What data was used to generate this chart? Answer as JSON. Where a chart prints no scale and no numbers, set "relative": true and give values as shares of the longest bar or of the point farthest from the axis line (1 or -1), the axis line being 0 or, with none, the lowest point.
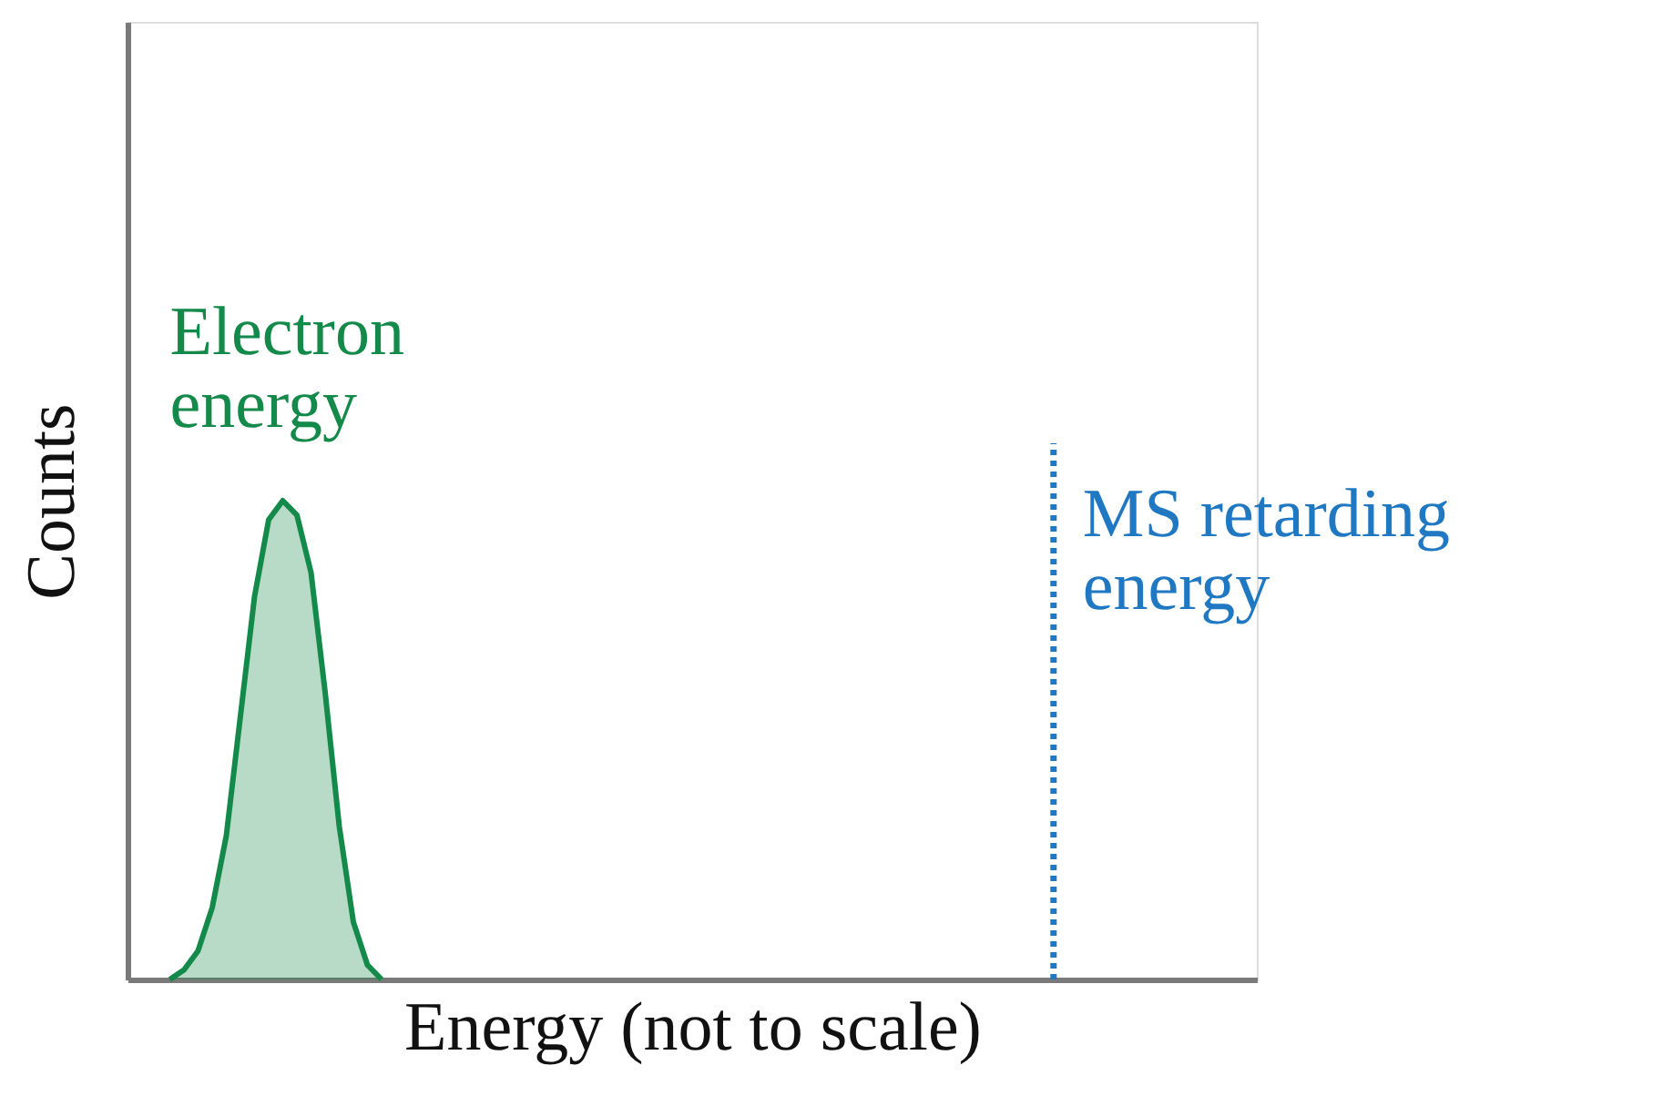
{
  "chart_data": {
    "type": "area",
    "relative": true,
    "xlabel": "Energy (not to scale)",
    "ylabel": "Counts",
    "tick_labels": false,
    "grid": false,
    "categories": [
      null,
      null,
      null,
      null,
      null,
      null,
      null,
      null,
      null,
      null,
      null,
      null,
      null,
      null,
      null,
      null,
      null,
      null,
      null,
      null,
      null,
      null,
      null,
      null,
      null,
      null,
      null,
      null,
      null,
      null,
      null,
      null,
      null,
      null,
      null,
      null,
      null,
      null,
      null,
      null,
      null,
      null,
      null,
      null,
      null,
      null,
      null,
      null,
      null,
      null,
      null,
      null,
      null,
      null,
      null,
      null,
      null,
      null,
      null,
      null,
      null,
      null,
      null,
      null,
      null,
      null,
      null,
      null,
      null,
      null,
      null,
      null,
      null,
      null,
      null,
      null,
      null,
      null,
      null,
      null,
      null
    ],
    "series": [
      {
        "name": "Electron\nenergy",
        "color": "#13894a",
        "values": [
          null,
          null,
          null,
          0,
          0.02,
          0.06,
          0.15,
          0.3,
          0.55,
          0.8,
          0.96,
          1,
          0.97,
          0.85,
          0.6,
          0.32,
          0.12,
          0.03,
          0,
          null,
          null,
          null,
          null,
          null,
          null,
          null,
          null,
          null,
          null,
          null,
          null,
          null,
          null,
          null,
          null,
          null,
          null,
          null,
          null,
          null,
          null,
          null,
          null,
          null,
          null,
          null,
          null,
          null,
          null,
          null,
          null,
          null,
          null,
          null,
          null,
          null,
          null,
          null,
          null,
          null,
          null,
          null,
          null,
          null,
          null,
          null,
          null,
          null,
          null,
          null,
          null,
          null,
          null,
          null,
          null,
          null,
          null,
          null,
          null,
          null,
          null
        ]
      }
    ],
    "annotations": [
      "MS retarding\nenergy"
    ]
  }
}
